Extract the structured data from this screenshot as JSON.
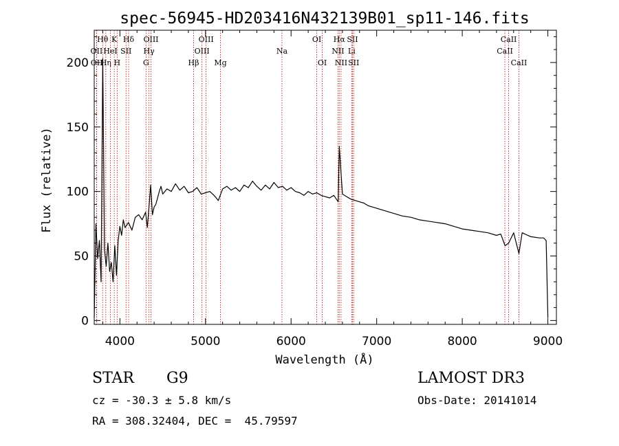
{
  "chart_data": {
    "type": "line",
    "title": "spec-56945-HD203416N432139B01_sp11-146.fits",
    "xlabel": "Wavelength (Å)",
    "ylabel": "Flux (relative)",
    "xlim": [
      3700,
      9100
    ],
    "ylim": [
      -3,
      225
    ],
    "xticks": [
      4000,
      5000,
      6000,
      7000,
      8000,
      9000
    ],
    "yticks": [
      0,
      50,
      100,
      150,
      200
    ],
    "series": [
      {
        "name": "flux",
        "color": "#000000",
        "x": [
          3700,
          3720,
          3740,
          3760,
          3780,
          3800,
          3820,
          3840,
          3860,
          3880,
          3900,
          3920,
          3940,
          3960,
          3980,
          4000,
          4020,
          4040,
          4060,
          4080,
          4100,
          4140,
          4180,
          4220,
          4260,
          4300,
          4320,
          4340,
          4360,
          4380,
          4400,
          4420,
          4440,
          4460,
          4480,
          4500,
          4550,
          4600,
          4650,
          4700,
          4750,
          4800,
          4850,
          4900,
          4950,
          5000,
          5050,
          5100,
          5150,
          5200,
          5250,
          5300,
          5350,
          5400,
          5450,
          5500,
          5550,
          5600,
          5650,
          5700,
          5750,
          5800,
          5850,
          5900,
          5950,
          6000,
          6050,
          6100,
          6150,
          6200,
          6250,
          6300,
          6350,
          6400,
          6450,
          6500,
          6550,
          6563,
          6580,
          6600,
          6650,
          6700,
          6750,
          6800,
          6850,
          6900,
          6950,
          7000,
          7100,
          7200,
          7300,
          7400,
          7500,
          7600,
          7700,
          7800,
          7900,
          8000,
          8100,
          8200,
          8300,
          8400,
          8450,
          8500,
          8542,
          8600,
          8662,
          8700,
          8800,
          8900,
          8950,
          8980,
          9000
        ],
        "y": [
          2,
          75,
          48,
          62,
          30,
          203,
          55,
          42,
          60,
          38,
          45,
          30,
          58,
          35,
          62,
          73,
          66,
          78,
          72,
          74,
          76,
          70,
          80,
          82,
          78,
          84,
          72,
          88,
          105,
          82,
          88,
          90,
          95,
          100,
          104,
          98,
          102,
          100,
          106,
          101,
          104,
          99,
          100,
          103,
          98,
          99,
          100,
          97,
          93,
          102,
          104,
          101,
          103,
          100,
          105,
          103,
          108,
          104,
          101,
          105,
          102,
          107,
          103,
          104,
          101,
          103,
          100,
          99,
          97,
          100,
          98,
          99,
          97,
          96,
          95,
          97,
          92,
          135,
          118,
          98,
          96,
          94,
          93,
          92,
          91,
          89,
          88,
          87,
          85,
          83,
          81,
          80,
          78,
          77,
          76,
          75,
          73,
          71,
          70,
          69,
          68,
          66,
          67,
          58,
          60,
          68,
          52,
          68,
          65,
          64,
          64,
          62,
          2
        ]
      }
    ],
    "spectral_lines": [
      {
        "label": "Hθ",
        "wavelength": 3798,
        "row": 0
      },
      {
        "label": "OII",
        "wavelength": 3727,
        "row": 1
      },
      {
        "label": "OII",
        "wavelength": 3729,
        "row": 2
      },
      {
        "label": "Hη",
        "wavelength": 3835,
        "row": 2
      },
      {
        "label": "HeI",
        "wavelength": 3889,
        "row": 1
      },
      {
        "label": "K",
        "wavelength": 3934,
        "row": 0
      },
      {
        "label": "H",
        "wavelength": 3968,
        "row": 2
      },
      {
        "label": "SII",
        "wavelength": 4072,
        "row": 1
      },
      {
        "label": "Hδ",
        "wavelength": 4102,
        "row": 0
      },
      {
        "label": "G",
        "wavelength": 4305,
        "row": 2
      },
      {
        "label": "Hγ",
        "wavelength": 4340,
        "row": 1
      },
      {
        "label": "OIII",
        "wavelength": 4363,
        "row": 0
      },
      {
        "label": "Hβ",
        "wavelength": 4861,
        "row": 2
      },
      {
        "label": "OIII",
        "wavelength": 4959,
        "row": 1
      },
      {
        "label": "OIII",
        "wavelength": 5007,
        "row": 0
      },
      {
        "label": "Mg",
        "wavelength": 5175,
        "row": 2
      },
      {
        "label": "Na",
        "wavelength": 5893,
        "row": 1
      },
      {
        "label": "OI",
        "wavelength": 6300,
        "row": 0
      },
      {
        "label": "OI",
        "wavelength": 6364,
        "row": 2
      },
      {
        "label": "NII",
        "wavelength": 6548,
        "row": 1
      },
      {
        "label": "Hα",
        "wavelength": 6563,
        "row": 0
      },
      {
        "label": "NII",
        "wavelength": 6584,
        "row": 2
      },
      {
        "label": "SII",
        "wavelength": 6717,
        "row": 0
      },
      {
        "label": "Li",
        "wavelength": 6708,
        "row": 1
      },
      {
        "label": "SII",
        "wavelength": 6731,
        "row": 2
      },
      {
        "label": "CaII",
        "wavelength": 8498,
        "row": 1
      },
      {
        "label": "CaII",
        "wavelength": 8542,
        "row": 0
      },
      {
        "label": "CaII",
        "wavelength": 8662,
        "row": 2
      }
    ]
  },
  "info": {
    "object_type": "STAR",
    "object_class": "G9",
    "survey": "LAMOST DR3",
    "cz": "cz = -30.3 ± 5.8 km/s",
    "obs_date": "Obs-Date: 20141014",
    "radec": "RA = 308.32404, DEC =  45.79597"
  },
  "colors": {
    "line_marker": "#c00000",
    "spectrum": "#000000",
    "axis": "#000000"
  }
}
